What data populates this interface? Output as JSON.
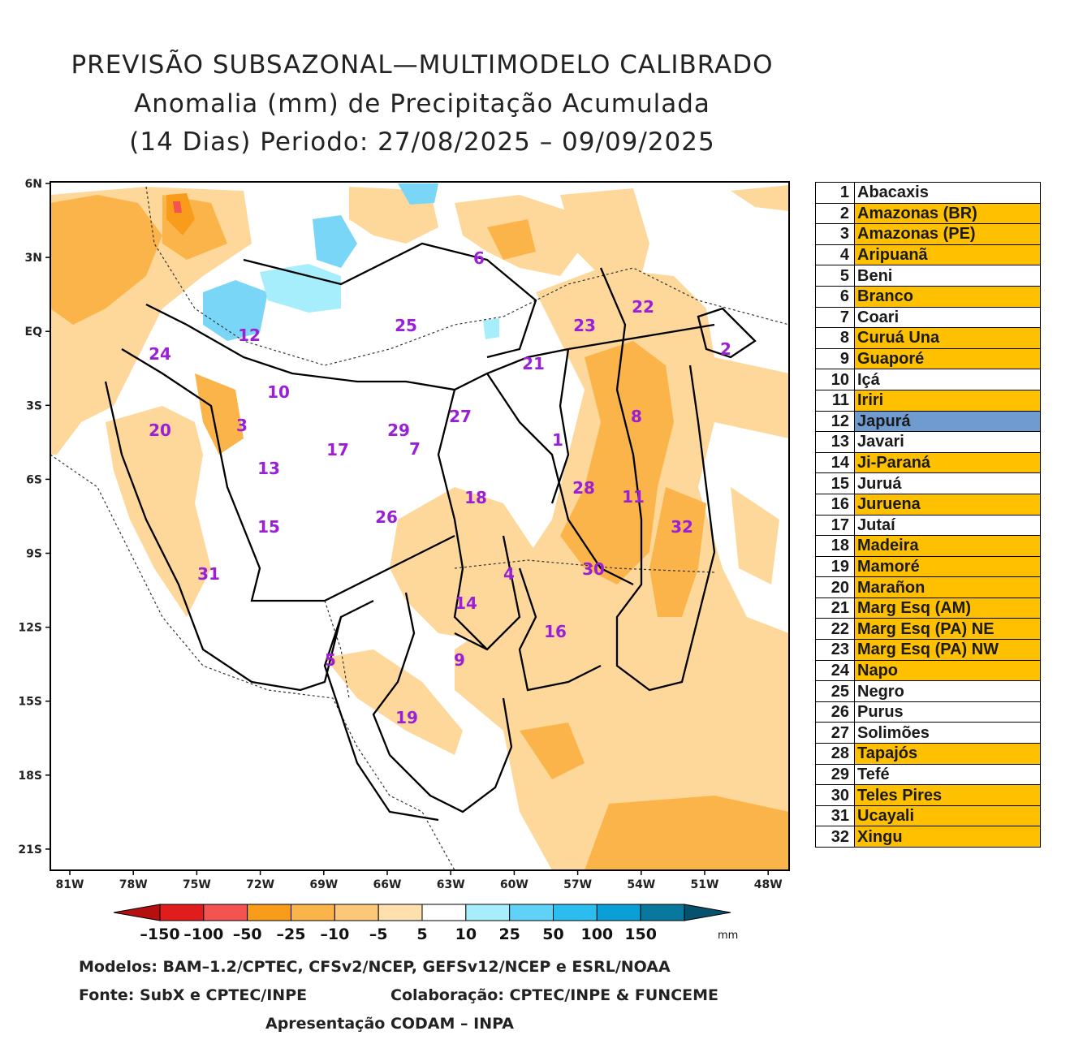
{
  "title": {
    "line1": "PREVISÃO SUBSAZONAL—MULTIMODELO CALIBRADO",
    "line2": "Anomalia (mm) de Precipitação Acumulada",
    "line3": "(14 Dias) Periodo: 27/08/2025 – 09/09/2025"
  },
  "axes": {
    "y_ticks": [
      "6N",
      "3N",
      "EQ",
      "3S",
      "6S",
      "9S",
      "12S",
      "15S",
      "18S",
      "21S"
    ],
    "x_ticks": [
      "81W",
      "78W",
      "75W",
      "72W",
      "69W",
      "66W",
      "63W",
      "60W",
      "57W",
      "54W",
      "51W",
      "48W"
    ]
  },
  "colors": {
    "highlight": "#ffc000",
    "highlight_blue": "#6f9bd1",
    "map_orange_light": "#fdd89a",
    "map_orange": "#fbb44a",
    "map_blue": "#7ad6f6"
  },
  "basins": [
    {
      "num": "1",
      "name": "Abacaxis",
      "status": "none"
    },
    {
      "num": "2",
      "name": "Amazonas (BR)",
      "status": "dry"
    },
    {
      "num": "3",
      "name": "Amazonas (PE)",
      "status": "dry"
    },
    {
      "num": "4",
      "name": "Aripuanã",
      "status": "dry"
    },
    {
      "num": "5",
      "name": "Beni",
      "status": "none"
    },
    {
      "num": "6",
      "name": "Branco",
      "status": "dry"
    },
    {
      "num": "7",
      "name": "Coari",
      "status": "none"
    },
    {
      "num": "8",
      "name": "Curuá Una",
      "status": "dry"
    },
    {
      "num": "9",
      "name": "Guaporé",
      "status": "dry"
    },
    {
      "num": "10",
      "name": "Içá",
      "status": "none"
    },
    {
      "num": "11",
      "name": "Iriri",
      "status": "dry"
    },
    {
      "num": "12",
      "name": "Japurá",
      "status": "wet"
    },
    {
      "num": "13",
      "name": "Javari",
      "status": "none"
    },
    {
      "num": "14",
      "name": "Ji-Paraná",
      "status": "dry"
    },
    {
      "num": "15",
      "name": "Juruá",
      "status": "none"
    },
    {
      "num": "16",
      "name": "Juruena",
      "status": "dry"
    },
    {
      "num": "17",
      "name": "Jutaí",
      "status": "none"
    },
    {
      "num": "18",
      "name": "Madeira",
      "status": "dry"
    },
    {
      "num": "19",
      "name": "Mamoré",
      "status": "dry"
    },
    {
      "num": "20",
      "name": "Marañon",
      "status": "dry"
    },
    {
      "num": "21",
      "name": "Marg Esq (AM)",
      "status": "dry"
    },
    {
      "num": "22",
      "name": "Marg Esq (PA) NE",
      "status": "dry"
    },
    {
      "num": "23",
      "name": "Marg Esq (PA) NW",
      "status": "dry"
    },
    {
      "num": "24",
      "name": "Napo",
      "status": "dry"
    },
    {
      "num": "25",
      "name": "Negro",
      "status": "none"
    },
    {
      "num": "26",
      "name": "Purus",
      "status": "none"
    },
    {
      "num": "27",
      "name": "Solimões",
      "status": "none"
    },
    {
      "num": "28",
      "name": "Tapajós",
      "status": "dry"
    },
    {
      "num": "29",
      "name": "Tefé",
      "status": "none"
    },
    {
      "num": "30",
      "name": "Teles Pires",
      "status": "dry"
    },
    {
      "num": "31",
      "name": "Ucayali",
      "status": "dry"
    },
    {
      "num": "32",
      "name": "Xingu",
      "status": "dry"
    }
  ],
  "colorbar": {
    "labels": [
      "–150",
      "–100",
      "–50",
      "–25",
      "–10",
      "–5",
      "5",
      "10",
      "25",
      "50",
      "100",
      "150"
    ],
    "unit": "mm",
    "colors": [
      "#b50f0f",
      "#e11c1c",
      "#f4534f",
      "#fa9c1b",
      "#fbb44a",
      "#fcc877",
      "#fde0ad",
      "#ffffff",
      "#a6eefc",
      "#61d2f7",
      "#2bbdf0",
      "#0a9fd6",
      "#09789f",
      "#06516e"
    ]
  },
  "footer": {
    "models": "Modelos: BAM–1.2/CPTEC, CFSv2/NCEP, GEFSv12/NCEP e ESRL/NOAA",
    "source": "Fonte: SubX e CPTEC/INPE",
    "collab": "Colaboração: CPTEC/INPE & FUNCEME",
    "presentation": "Apresentação CODAM – INPA"
  }
}
